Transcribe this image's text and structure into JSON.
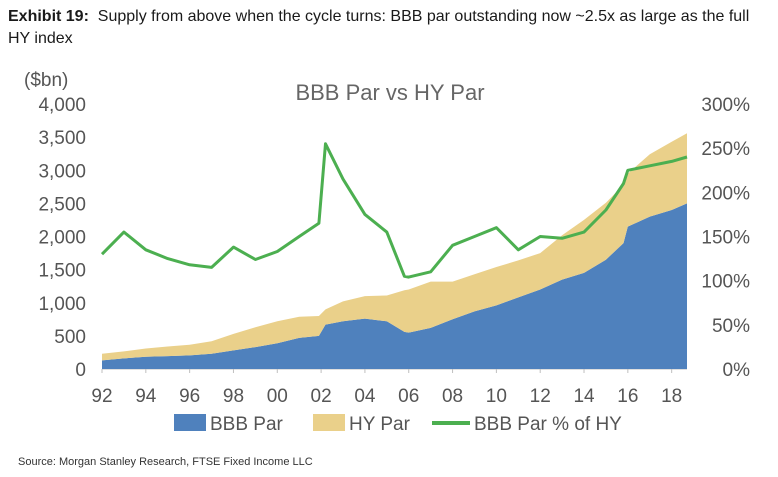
{
  "header": {
    "exhibit_label": "Exhibit 19:",
    "title": "Supply from above when the cycle turns: BBB par outstanding now ~2.5x as large as the full HY index"
  },
  "footer": {
    "source": "Source: Morgan Stanley Research, FTSE Fixed Income LLC"
  },
  "colors": {
    "bbb": "#4f81bd",
    "hy": "#ead08a",
    "ratio": "#4caf50"
  },
  "chart_data": {
    "type": "area",
    "title": "BBB Par vs HY Par",
    "ylabel": "($bn)",
    "ylim": [
      0,
      4000
    ],
    "yticks": [
      "0",
      "500",
      "1,000",
      "1,500",
      "2,000",
      "2,500",
      "3,000",
      "3,500",
      "4,000"
    ],
    "y2lim": [
      0,
      300
    ],
    "y2ticks": [
      "0%",
      "50%",
      "100%",
      "150%",
      "200%",
      "250%",
      "300%"
    ],
    "xlim": [
      1992,
      2018.7
    ],
    "xticks": [
      "92",
      "94",
      "96",
      "98",
      "00",
      "02",
      "04",
      "06",
      "08",
      "10",
      "12",
      "14",
      "16",
      "18"
    ],
    "legend": "bottom",
    "x": [
      1992,
      1993,
      1994,
      1995,
      1996,
      1997,
      1998,
      1999,
      2000,
      2001,
      2001.9,
      2002.2,
      2003,
      2004,
      2005,
      2005.8,
      2006,
      2007,
      2008,
      2009,
      2010,
      2011,
      2012,
      2013,
      2014,
      2015,
      2015.8,
      2016,
      2017,
      2018,
      2018.7
    ],
    "series": [
      {
        "name": "BBB Par",
        "stack": true,
        "values": [
          130,
          160,
          185,
          195,
          205,
          230,
          280,
          330,
          390,
          470,
          500,
          670,
          720,
          760,
          720,
          560,
          550,
          620,
          750,
          870,
          960,
          1080,
          1200,
          1350,
          1450,
          1650,
          1900,
          2150,
          2300,
          2400,
          2500
        ]
      },
      {
        "name": "HY Par",
        "stack": true,
        "values": [
          100,
          105,
          125,
          145,
          160,
          190,
          250,
          300,
          330,
          320,
          300,
          230,
          300,
          340,
          390,
          630,
          650,
          700,
          570,
          560,
          580,
          560,
          550,
          670,
          800,
          860,
          880,
          800,
          940,
          1030,
          1060
        ]
      },
      {
        "name": "BBB Par % of HY",
        "axis": "right",
        "values": [
          130,
          155,
          135,
          125,
          118,
          115,
          138,
          124,
          133,
          150,
          165,
          255,
          215,
          175,
          155,
          105,
          104,
          110,
          140,
          150,
          160,
          135,
          150,
          148,
          155,
          180,
          210,
          225,
          230,
          235,
          240
        ]
      }
    ]
  }
}
